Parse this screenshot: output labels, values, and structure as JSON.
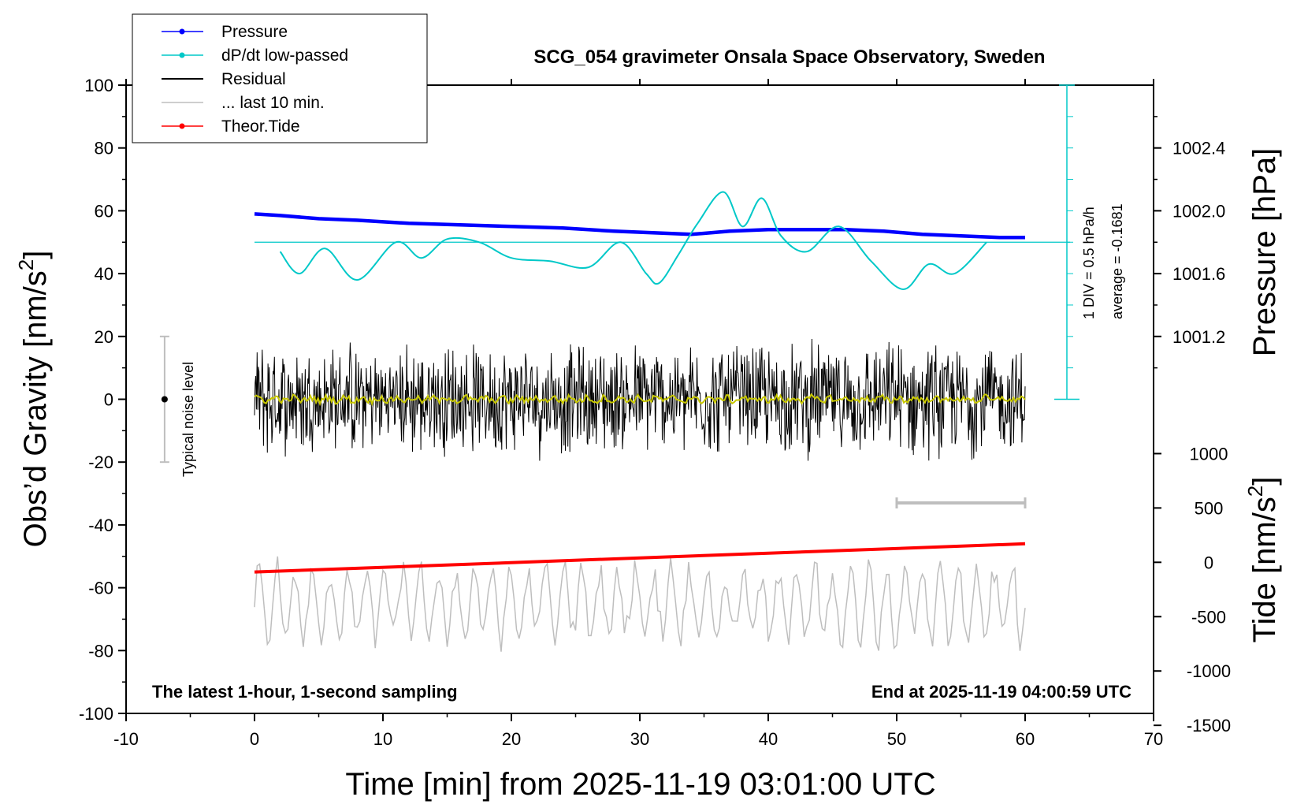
{
  "chart_data": {
    "type": "line",
    "title": "SCG_054 gravimeter Onsala Space Observatory, Sweden",
    "xlabel": "Time [min] from 2025-11-19 03:01:00 UTC",
    "ylabel_left": "Obs’d Gravity [nm/s",
    "ylabel_left_sup": "2",
    "ylabel_left_end": "]",
    "ylabel_right_pressure": "Pressure [hPa]",
    "ylabel_right_tide": "Tide [nm/s",
    "ylabel_right_tide_sup": "2",
    "ylabel_right_tide_end": "]",
    "xlim": [
      -10,
      70
    ],
    "xticks": [
      -10,
      0,
      10,
      20,
      30,
      40,
      50,
      60,
      70
    ],
    "ylim_left": [
      -100,
      100
    ],
    "yticks_left": [
      100,
      80,
      60,
      40,
      20,
      0,
      -20,
      -40,
      -60,
      -80,
      -100
    ],
    "pressure_ticks": [
      "1002.4",
      "1002.0",
      "1001.6",
      "1001.2"
    ],
    "pressure_tick_values": [
      1002.4,
      1002.0,
      1001.6,
      1001.2
    ],
    "tide_ticks": [
      "1000",
      "500",
      "0",
      "-500",
      "-1000",
      "-1500"
    ],
    "tide_tick_values": [
      1000,
      500,
      0,
      -500,
      -1000,
      -1500
    ],
    "grid": false,
    "legend_position": "top-left",
    "legend": [
      {
        "label": "Pressure",
        "color": "#0000ff",
        "marker": true
      },
      {
        "label": "dP/dt low-passed",
        "color": "#00c8c8",
        "marker": true
      },
      {
        "label": "Residual",
        "color": "#000000",
        "marker": false
      },
      {
        "label": "... last 10 min.",
        "color": "#bebebe",
        "marker": false
      },
      {
        "label": "Theor.Tide",
        "color": "#ff0000",
        "marker": true
      }
    ],
    "annotations": {
      "noise_label": "Typical noise level",
      "noise_range": [
        -20,
        20
      ],
      "scale_div": "1 DIV = 0.5 hPa/h",
      "average": "average = -0.1681",
      "bottom_left": "The latest 1-hour, 1-second sampling",
      "bottom_right": "End at 2025-11-19 04:00:59 UTC"
    },
    "series": [
      {
        "name": "Pressure",
        "color": "#0000ff",
        "x": [
          0,
          2,
          5,
          8,
          12,
          16,
          20,
          24,
          28,
          31,
          34,
          37,
          40,
          43,
          46,
          49,
          52,
          55,
          58,
          60
        ],
        "y": [
          1001.98,
          1001.97,
          1001.95,
          1001.94,
          1001.92,
          1001.91,
          1001.9,
          1001.89,
          1001.87,
          1001.86,
          1001.85,
          1001.87,
          1001.88,
          1001.88,
          1001.88,
          1001.87,
          1001.85,
          1001.84,
          1001.83,
          1001.83
        ]
      },
      {
        "name": "dP/dt low-passed",
        "color": "#00c8c8",
        "x": [
          2,
          3.5,
          5.5,
          8,
          11,
          13,
          15,
          17.5,
          20,
          23,
          26,
          28.5,
          30.5,
          31.5,
          33,
          34.5,
          36.5,
          38,
          39.5,
          41,
          43,
          45.5,
          48,
          50.5,
          52.5,
          54.5,
          57
        ],
        "y": [
          47,
          40,
          48,
          38,
          50,
          45,
          51,
          50,
          45,
          44,
          42,
          50,
          40,
          37,
          46,
          56,
          66,
          55,
          64,
          52,
          47,
          55,
          44,
          35,
          43,
          40,
          50
        ]
      },
      {
        "name": "Theor.Tide",
        "color": "#ff0000",
        "x": [
          0,
          60
        ],
        "y": [
          -55,
          -46
        ]
      }
    ],
    "residual_range": [
      -30,
      30
    ],
    "last10_range": [
      -90,
      -40
    ]
  }
}
